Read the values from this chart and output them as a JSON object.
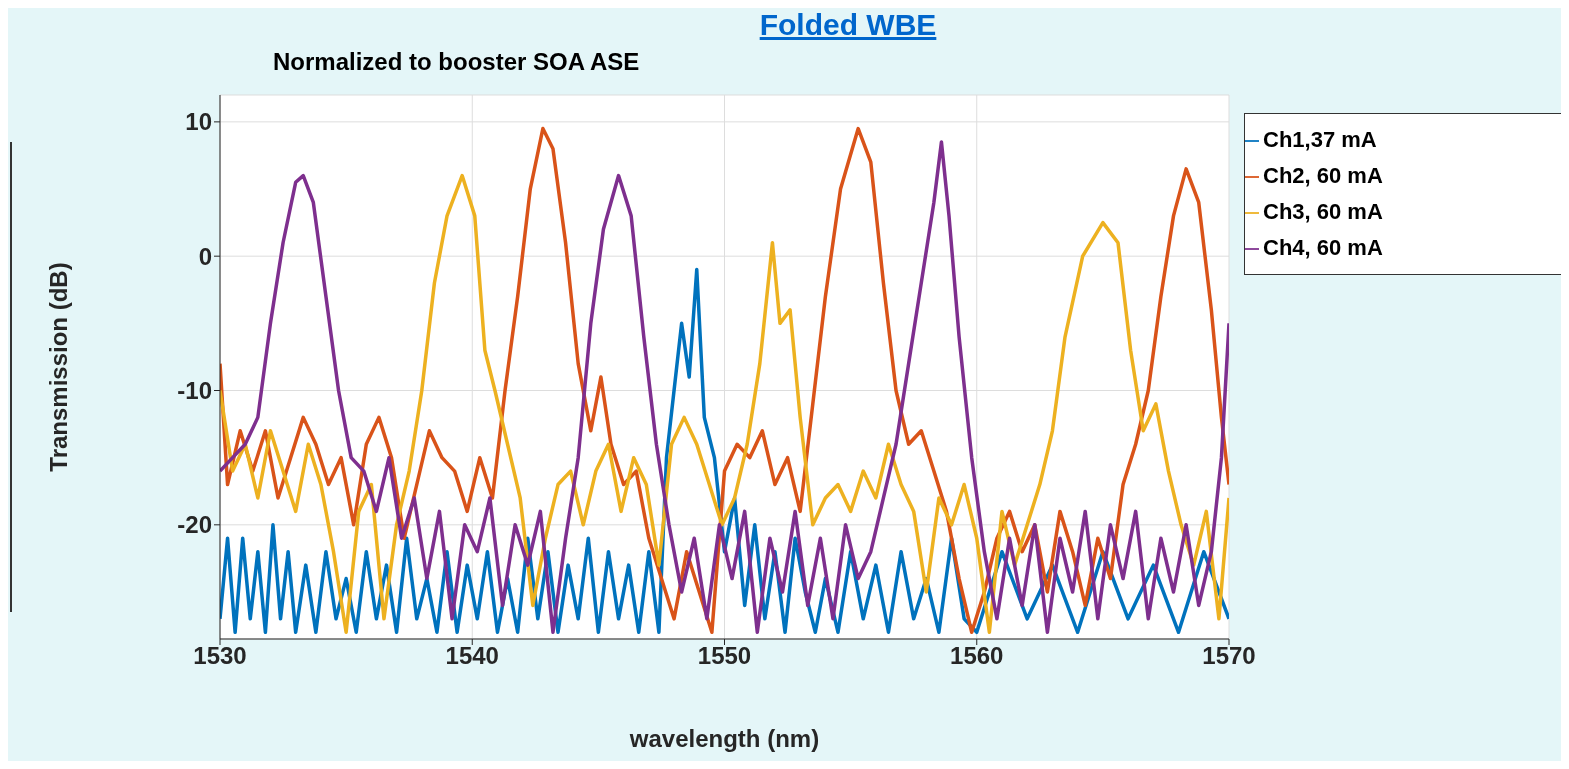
{
  "chart_data": {
    "type": "line",
    "title": "Folded WBE",
    "subtitle": "Normalized to booster SOA ASE",
    "xlabel": "wavelength (nm)",
    "ylabel": "Transmission (dB)",
    "xlim": [
      1530,
      1570
    ],
    "xticks": [
      1530,
      1540,
      1550,
      1560,
      1570
    ],
    "ylim": [
      -28.5,
      12
    ],
    "yticks": [
      -20,
      -10,
      0,
      10
    ],
    "grid": true,
    "legend": "top right",
    "marker": "none",
    "line_style": "solid",
    "series": [
      {
        "name": "Ch1,37 mA",
        "color": "#0072bd",
        "x": [
          1530,
          1530.3,
          1530.6,
          1530.9,
          1531.2,
          1531.5,
          1531.8,
          1532.1,
          1532.4,
          1532.7,
          1533,
          1533.4,
          1533.8,
          1534.2,
          1534.6,
          1535,
          1535.4,
          1535.8,
          1536.2,
          1536.6,
          1537,
          1537.4,
          1537.8,
          1538.2,
          1538.6,
          1539,
          1539.4,
          1539.8,
          1540.2,
          1540.6,
          1541,
          1541.4,
          1541.8,
          1542.2,
          1542.6,
          1543,
          1543.4,
          1543.8,
          1544.2,
          1544.6,
          1545,
          1545.4,
          1545.8,
          1546.2,
          1546.6,
          1547,
          1547.4,
          1547.7,
          1548,
          1548.3,
          1548.6,
          1548.9,
          1549.2,
          1549.6,
          1550,
          1550.4,
          1550.8,
          1551.2,
          1551.6,
          1552,
          1552.4,
          1552.8,
          1553.2,
          1553.6,
          1554,
          1554.5,
          1555,
          1555.5,
          1556,
          1556.5,
          1557,
          1557.5,
          1558,
          1558.5,
          1559,
          1559.5,
          1560,
          1561,
          1562,
          1563,
          1564,
          1565,
          1566,
          1567,
          1568,
          1569,
          1570
        ],
        "values": [
          -27,
          -21,
          -28,
          -21,
          -27,
          -22,
          -28,
          -20,
          -27,
          -22,
          -28,
          -23,
          -28,
          -22,
          -27,
          -24,
          -28,
          -22,
          -27,
          -23,
          -28,
          -21,
          -27,
          -24,
          -28,
          -22,
          -28,
          -23,
          -27,
          -22,
          -28,
          -24,
          -28,
          -21,
          -27,
          -22,
          -28,
          -23,
          -27,
          -21,
          -28,
          -22,
          -27,
          -23,
          -28,
          -22,
          -28,
          -15,
          -10,
          -5,
          -9,
          -1,
          -12,
          -15,
          -22,
          -18,
          -26,
          -20,
          -27,
          -22,
          -28,
          -21,
          -25,
          -28,
          -24,
          -28,
          -22,
          -27,
          -23,
          -28,
          -22,
          -27,
          -24,
          -28,
          -21,
          -27,
          -28,
          -22,
          -27,
          -23,
          -28,
          -22,
          -27,
          -23,
          -28,
          -22,
          -27
        ]
      },
      {
        "name": "Ch2, 60 mA",
        "color": "#d95319",
        "x": [
          1530,
          1530.3,
          1530.8,
          1531.3,
          1531.8,
          1532.3,
          1532.8,
          1533.3,
          1533.8,
          1534.3,
          1534.8,
          1535.3,
          1535.8,
          1536.3,
          1536.8,
          1537.3,
          1537.8,
          1538.3,
          1538.8,
          1539.3,
          1539.8,
          1540.3,
          1540.8,
          1541.3,
          1541.8,
          1542.3,
          1542.8,
          1543.2,
          1543.7,
          1544.2,
          1544.7,
          1545.1,
          1545.5,
          1546,
          1546.5,
          1547,
          1547.5,
          1548,
          1548.5,
          1549,
          1549.5,
          1550,
          1550.5,
          1551,
          1551.5,
          1552,
          1552.5,
          1553,
          1553.5,
          1554,
          1554.6,
          1555.3,
          1555.8,
          1556.3,
          1556.8,
          1557.3,
          1557.8,
          1558.3,
          1558.8,
          1559.3,
          1559.8,
          1560.3,
          1560.8,
          1561.3,
          1561.8,
          1562.3,
          1562.8,
          1563.3,
          1563.8,
          1564.3,
          1564.8,
          1565.3,
          1565.8,
          1566.3,
          1566.8,
          1567.3,
          1567.8,
          1568.3,
          1568.8,
          1569.3,
          1569.7,
          1570
        ],
        "values": [
          -8,
          -17,
          -13,
          -16,
          -13,
          -18,
          -15,
          -12,
          -14,
          -17,
          -15,
          -20,
          -14,
          -12,
          -15,
          -21,
          -17,
          -13,
          -15,
          -16,
          -19,
          -15,
          -18,
          -10,
          -3,
          5,
          9.5,
          8,
          1,
          -8,
          -13,
          -9,
          -14,
          -17,
          -16,
          -21,
          -24,
          -27,
          -22,
          -25,
          -28,
          -16,
          -14,
          -15,
          -13,
          -17,
          -15,
          -19,
          -11,
          -3,
          5,
          9.5,
          7,
          -2,
          -10,
          -14,
          -13,
          -16,
          -19,
          -24,
          -28,
          -25,
          -21,
          -19,
          -22,
          -20,
          -25,
          -19,
          -22,
          -26,
          -21,
          -24,
          -17,
          -14,
          -10,
          -3,
          3,
          6.5,
          4,
          -4,
          -12,
          -17
        ]
      },
      {
        "name": "Ch3, 60 mA",
        "color": "#edb120",
        "x": [
          1530,
          1530.5,
          1531,
          1531.5,
          1532,
          1532.5,
          1533,
          1533.5,
          1534,
          1534.5,
          1535,
          1535.5,
          1536,
          1536.5,
          1537,
          1537.5,
          1538,
          1538.5,
          1539,
          1539.6,
          1540.1,
          1540.5,
          1540.9,
          1541.4,
          1541.9,
          1542.4,
          1542.9,
          1543.4,
          1543.9,
          1544.4,
          1544.9,
          1545.4,
          1545.9,
          1546.4,
          1546.9,
          1547.4,
          1547.9,
          1548.4,
          1548.9,
          1549.4,
          1549.9,
          1550.4,
          1550.9,
          1551.4,
          1551.9,
          1552.2,
          1552.6,
          1553,
          1553.5,
          1554,
          1554.5,
          1555,
          1555.5,
          1556,
          1556.5,
          1557,
          1557.5,
          1558,
          1558.5,
          1559,
          1559.5,
          1560,
          1560.5,
          1561,
          1561.5,
          1562,
          1562.5,
          1563,
          1563.5,
          1564.2,
          1565,
          1565.6,
          1566.1,
          1566.6,
          1567.1,
          1567.6,
          1568.1,
          1568.6,
          1569.1,
          1569.6,
          1570
        ],
        "values": [
          -10,
          -16,
          -14,
          -18,
          -13,
          -16,
          -19,
          -14,
          -17,
          -22,
          -28,
          -19,
          -17,
          -27,
          -20,
          -16,
          -10,
          -2,
          3,
          6,
          3,
          -7,
          -10,
          -14,
          -18,
          -26,
          -21,
          -17,
          -16,
          -20,
          -16,
          -14,
          -19,
          -15,
          -17,
          -23,
          -14,
          -12,
          -14,
          -17,
          -20,
          -18,
          -14,
          -8,
          1,
          -5,
          -4,
          -12,
          -20,
          -18,
          -17,
          -19,
          -16,
          -18,
          -14,
          -17,
          -19,
          -25,
          -18,
          -20,
          -17,
          -21,
          -28,
          -19,
          -23,
          -20,
          -17,
          -13,
          -6,
          0,
          2.5,
          1,
          -7,
          -13,
          -11,
          -16,
          -20,
          -23,
          -19,
          -27,
          -18
        ]
      },
      {
        "name": "Ch4, 60 mA",
        "color": "#7e2f8e",
        "x": [
          1530,
          1530.5,
          1531,
          1531.5,
          1532,
          1532.5,
          1533,
          1533.3,
          1533.7,
          1534.2,
          1534.7,
          1535.2,
          1535.7,
          1536.2,
          1536.7,
          1537.2,
          1537.7,
          1538.2,
          1538.7,
          1539.2,
          1539.7,
          1540.2,
          1540.7,
          1541.2,
          1541.7,
          1542.2,
          1542.7,
          1543.2,
          1543.7,
          1544.2,
          1544.7,
          1545.2,
          1545.8,
          1546.3,
          1546.8,
          1547.3,
          1547.8,
          1548.3,
          1548.8,
          1549.3,
          1549.8,
          1550.3,
          1550.8,
          1551.3,
          1551.8,
          1552.3,
          1552.8,
          1553.3,
          1553.8,
          1554.3,
          1554.8,
          1555.3,
          1555.8,
          1556.3,
          1556.8,
          1557.3,
          1557.8,
          1558.3,
          1558.6,
          1558.9,
          1559.3,
          1559.8,
          1560.3,
          1560.8,
          1561.3,
          1561.8,
          1562.3,
          1562.8,
          1563.3,
          1563.8,
          1564.3,
          1564.8,
          1565.3,
          1565.8,
          1566.3,
          1566.8,
          1567.3,
          1567.8,
          1568.3,
          1568.8,
          1569.3,
          1569.7,
          1570
        ],
        "values": [
          -16,
          -15,
          -14,
          -12,
          -5,
          1,
          5.5,
          6,
          4,
          -3,
          -10,
          -15,
          -16,
          -19,
          -15,
          -21,
          -18,
          -24,
          -19,
          -27,
          -20,
          -22,
          -18,
          -26,
          -20,
          -23,
          -19,
          -28,
          -21,
          -15,
          -5,
          2,
          6,
          3,
          -6,
          -14,
          -20,
          -25,
          -21,
          -27,
          -20,
          -24,
          -19,
          -28,
          -21,
          -25,
          -19,
          -26,
          -21,
          -27,
          -20,
          -24,
          -22,
          -18,
          -14,
          -8,
          -2,
          4,
          8.5,
          3,
          -6,
          -15,
          -22,
          -27,
          -21,
          -26,
          -20,
          -28,
          -21,
          -25,
          -19,
          -27,
          -20,
          -24,
          -19,
          -27,
          -21,
          -25,
          -20,
          -26,
          -22,
          -15,
          -5
        ]
      }
    ]
  }
}
